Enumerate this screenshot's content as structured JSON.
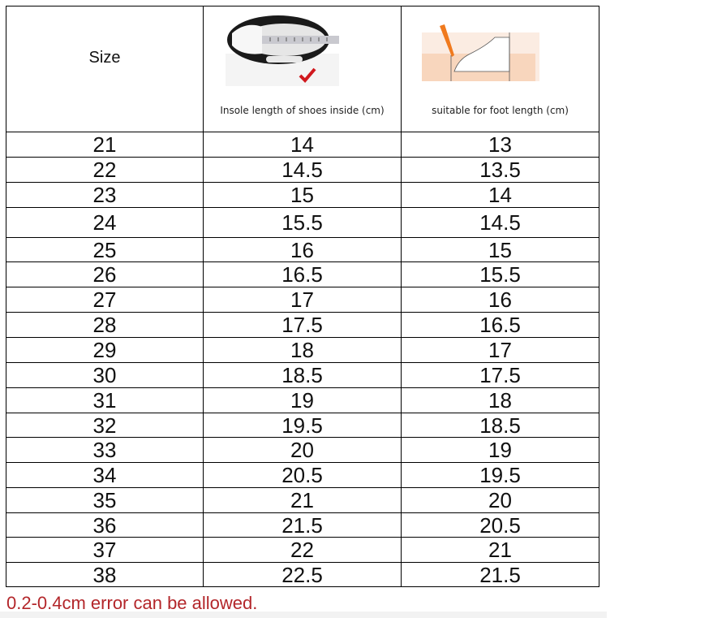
{
  "header": {
    "size_label": "Size",
    "insole_label": "Insole length of shoes inside (cm)",
    "foot_label": "suitable for foot length (cm)",
    "insole_image_icon": "shoe-measuring-tape-image",
    "foot_image_icon": "foot-tracing-pencil-image"
  },
  "rows": [
    {
      "size": "21",
      "insole": "14",
      "foot": "13"
    },
    {
      "size": "22",
      "insole": "14.5",
      "foot": "13.5"
    },
    {
      "size": "23",
      "insole": "15",
      "foot": "14"
    },
    {
      "size": "24",
      "insole": "15.5",
      "foot": "14.5"
    },
    {
      "size": "25",
      "insole": "16",
      "foot": "15"
    },
    {
      "size": "26",
      "insole": "16.5",
      "foot": "15.5"
    },
    {
      "size": "27",
      "insole": "17",
      "foot": "16"
    },
    {
      "size": "28",
      "insole": "17.5",
      "foot": "16.5"
    },
    {
      "size": "29",
      "insole": "18",
      "foot": "17"
    },
    {
      "size": "30",
      "insole": "18.5",
      "foot": "17.5"
    },
    {
      "size": "31",
      "insole": "19",
      "foot": "18"
    },
    {
      "size": "32",
      "insole": "19.5",
      "foot": "18.5"
    },
    {
      "size": "33",
      "insole": "20",
      "foot": "19"
    },
    {
      "size": "34",
      "insole": "20.5",
      "foot": "19.5"
    },
    {
      "size": "35",
      "insole": "21",
      "foot": "20"
    },
    {
      "size": "36",
      "insole": "21.5",
      "foot": "20.5"
    },
    {
      "size": "37",
      "insole": "22",
      "foot": "21"
    },
    {
      "size": "38",
      "insole": "22.5",
      "foot": "21.5"
    }
  ],
  "note": "0.2-0.4cm error can be allowed.",
  "colors": {
    "note": "#b3262a",
    "check": "#d0181e",
    "pencil": "#f07a1e",
    "paper": "#f8d6bd"
  }
}
